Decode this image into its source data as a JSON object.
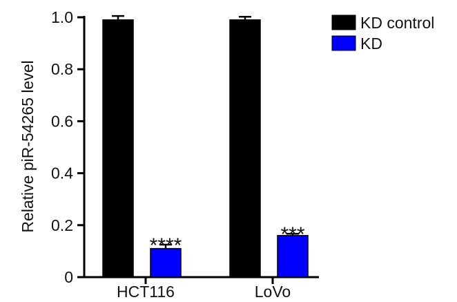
{
  "chart_data": {
    "type": "bar",
    "title": "",
    "xlabel": "",
    "ylabel": "Relative piR-54265 level",
    "ylim": [
      0,
      1.0
    ],
    "yticks": [
      "0",
      "0.2",
      "0.4",
      "0.6",
      "0.8",
      "1.0"
    ],
    "categories": [
      "HCT116",
      "LoVo"
    ],
    "series": [
      {
        "name": "KD control",
        "color": "#000000",
        "values": [
          0.99,
          0.99
        ],
        "errors": [
          0.015,
          0.012
        ]
      },
      {
        "name": "KD",
        "color": "#0000ff",
        "values": [
          0.11,
          0.16
        ],
        "errors": [
          0.015,
          0.007
        ]
      }
    ],
    "annotations": [
      {
        "category": "HCT116",
        "series": "KD",
        "text": "****"
      },
      {
        "category": "LoVo",
        "series": "KD",
        "text": "***"
      }
    ],
    "legend_position": "top-right",
    "grid": false
  }
}
